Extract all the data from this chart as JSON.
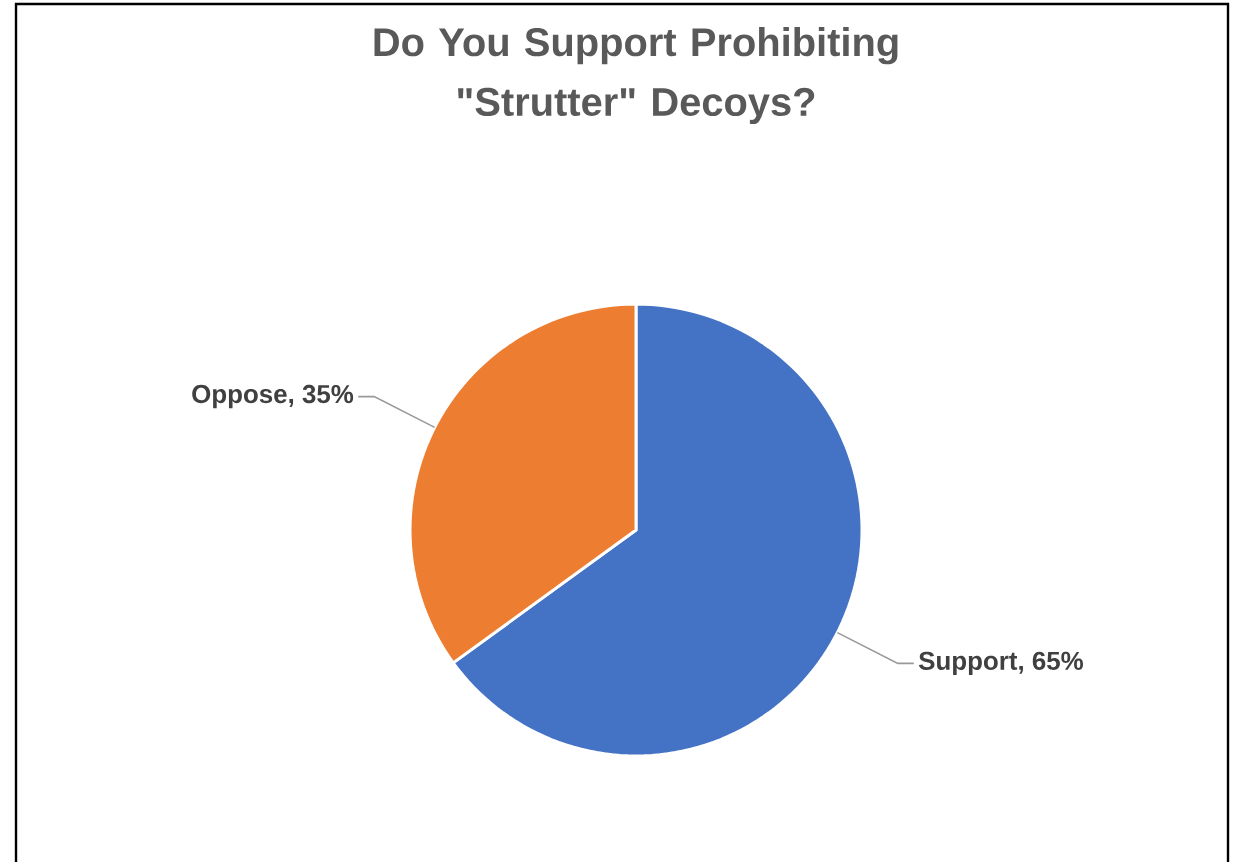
{
  "chart_data": {
    "type": "pie",
    "title": "Do You Support Prohibiting \"Strutter\" Decoys?",
    "categories": [
      "Support, 65%",
      "Oppose, 35%"
    ],
    "values": [
      65,
      35
    ],
    "colors": [
      "#4472c4",
      "#ed7d31"
    ]
  }
}
